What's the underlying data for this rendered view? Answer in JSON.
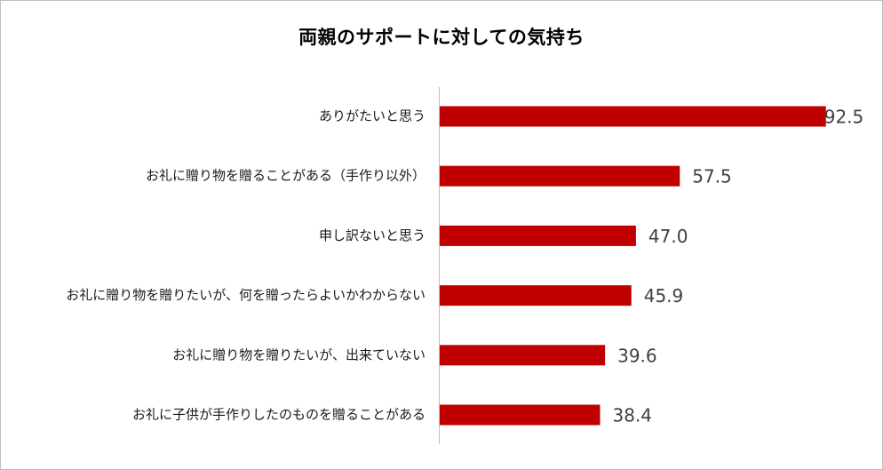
{
  "chart_data": {
    "type": "bar",
    "orientation": "horizontal",
    "title": "両親のサポートに対しての気持ち",
    "categories": [
      "ありがたいと思う",
      "お礼に贈り物を贈ることがある（手作り以外）",
      "申し訳ないと思う",
      "お礼に贈り物を贈りたいが、何を贈ったらよいかわからない",
      "お礼に贈り物を贈りたいが、出来ていない",
      "お礼に子供が手作りしたのものを贈ることがある"
    ],
    "values": [
      92.5,
      57.5,
      47.0,
      45.9,
      39.6,
      38.4
    ],
    "value_labels": [
      "92.5",
      "57.5",
      "47.0",
      "45.9",
      "39.6",
      "38.4"
    ],
    "xlim": [
      0,
      100
    ],
    "grid": false,
    "legend": "none",
    "colors": {
      "bar": "#c00000",
      "axis": "#bfbfbf",
      "value_text": "#404040"
    }
  }
}
